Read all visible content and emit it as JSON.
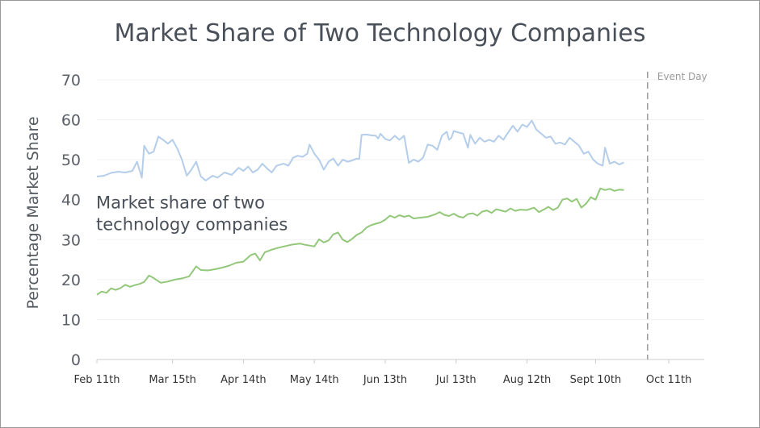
{
  "chart_data": {
    "type": "line",
    "title": "Market Share of Two Technology Companies",
    "ylabel": "Percentage Market Share",
    "xlabel": "",
    "ylim": [
      0,
      70
    ],
    "yticks": [
      0,
      10,
      20,
      30,
      40,
      50,
      60,
      70
    ],
    "xlim": [
      "2023-02-11",
      "2023-10-26"
    ],
    "xticks": [
      {
        "date": "2023-02-11",
        "label": "Feb 11th"
      },
      {
        "date": "2023-03-15",
        "label": "Mar 15th"
      },
      {
        "date": "2023-04-14",
        "label": "Apr 14th"
      },
      {
        "date": "2023-05-14",
        "label": "May 14th"
      },
      {
        "date": "2023-06-13",
        "label": "Jun 13th"
      },
      {
        "date": "2023-07-13",
        "label": "Jul 13th"
      },
      {
        "date": "2023-08-12",
        "label": "Aug 12th"
      },
      {
        "date": "2023-09-10",
        "label": "Sept 10th"
      },
      {
        "date": "2023-10-11",
        "label": "Oct 11th"
      }
    ],
    "grid": true,
    "annotation": {
      "lines": [
        "Market share of two",
        "technology companies"
      ],
      "x": "2023-02-11",
      "y": 40
    },
    "event": {
      "date": "2023-10-02",
      "label": "Event Day"
    },
    "series": [
      {
        "color": "#b4cdea",
        "points": [
          [
            "2023-02-11",
            45.8
          ],
          [
            "2023-02-14",
            46.0
          ],
          [
            "2023-02-17",
            46.7
          ],
          [
            "2023-02-20",
            47.0
          ],
          [
            "2023-02-23",
            46.8
          ],
          [
            "2023-02-26",
            47.2
          ],
          [
            "2023-02-28",
            49.5
          ],
          [
            "2023-03-02",
            45.5
          ],
          [
            "2023-03-03",
            53.5
          ],
          [
            "2023-03-05",
            51.5
          ],
          [
            "2023-03-07",
            52.0
          ],
          [
            "2023-03-09",
            55.8
          ],
          [
            "2023-03-11",
            55.0
          ],
          [
            "2023-03-13",
            54.0
          ],
          [
            "2023-03-15",
            55.0
          ],
          [
            "2023-03-17",
            52.8
          ],
          [
            "2023-03-19",
            50.0
          ],
          [
            "2023-03-21",
            46.0
          ],
          [
            "2023-03-23",
            47.5
          ],
          [
            "2023-03-25",
            49.5
          ],
          [
            "2023-03-27",
            45.8
          ],
          [
            "2023-03-29",
            44.8
          ],
          [
            "2023-04-01",
            46.0
          ],
          [
            "2023-04-03",
            45.5
          ],
          [
            "2023-04-06",
            46.8
          ],
          [
            "2023-04-09",
            46.2
          ],
          [
            "2023-04-12",
            48.0
          ],
          [
            "2023-04-14",
            47.2
          ],
          [
            "2023-04-16",
            48.3
          ],
          [
            "2023-04-18",
            46.8
          ],
          [
            "2023-04-20",
            47.5
          ],
          [
            "2023-04-22",
            49.0
          ],
          [
            "2023-04-24",
            47.8
          ],
          [
            "2023-04-26",
            46.8
          ],
          [
            "2023-04-28",
            48.5
          ],
          [
            "2023-05-01",
            49.0
          ],
          [
            "2023-05-03",
            48.5
          ],
          [
            "2023-05-05",
            50.5
          ],
          [
            "2023-05-07",
            51.0
          ],
          [
            "2023-05-09",
            50.7
          ],
          [
            "2023-05-11",
            51.5
          ],
          [
            "2023-05-12",
            53.8
          ],
          [
            "2023-05-14",
            51.5
          ],
          [
            "2023-05-16",
            50.0
          ],
          [
            "2023-05-18",
            47.5
          ],
          [
            "2023-05-20",
            49.5
          ],
          [
            "2023-05-22",
            50.3
          ],
          [
            "2023-05-24",
            48.5
          ],
          [
            "2023-05-26",
            50.0
          ],
          [
            "2023-05-28",
            49.5
          ],
          [
            "2023-05-30",
            49.8
          ],
          [
            "2023-06-01",
            50.3
          ],
          [
            "2023-06-02",
            50.2
          ],
          [
            "2023-06-03",
            56.2
          ],
          [
            "2023-06-05",
            56.3
          ],
          [
            "2023-06-07",
            56.1
          ],
          [
            "2023-06-09",
            56.0
          ],
          [
            "2023-06-10",
            55.3
          ],
          [
            "2023-06-11",
            56.5
          ],
          [
            "2023-06-13",
            55.2
          ],
          [
            "2023-06-15",
            54.8
          ],
          [
            "2023-06-17",
            56.0
          ],
          [
            "2023-06-19",
            55.0
          ],
          [
            "2023-06-21",
            56.0
          ],
          [
            "2023-06-23",
            49.2
          ],
          [
            "2023-06-25",
            50.0
          ],
          [
            "2023-06-27",
            49.5
          ],
          [
            "2023-06-29",
            50.5
          ],
          [
            "2023-07-01",
            53.8
          ],
          [
            "2023-07-03",
            53.5
          ],
          [
            "2023-07-05",
            52.5
          ],
          [
            "2023-07-07",
            56.0
          ],
          [
            "2023-07-09",
            57.0
          ],
          [
            "2023-07-10",
            55.0
          ],
          [
            "2023-07-11",
            55.5
          ],
          [
            "2023-07-12",
            57.2
          ],
          [
            "2023-07-14",
            56.8
          ],
          [
            "2023-07-16",
            56.5
          ],
          [
            "2023-07-18",
            53.0
          ],
          [
            "2023-07-19",
            56.2
          ],
          [
            "2023-07-21",
            54.0
          ],
          [
            "2023-07-23",
            55.5
          ],
          [
            "2023-07-25",
            54.5
          ],
          [
            "2023-07-27",
            55.0
          ],
          [
            "2023-07-29",
            54.5
          ],
          [
            "2023-07-31",
            56.0
          ],
          [
            "2023-08-02",
            55.0
          ],
          [
            "2023-08-04",
            56.8
          ],
          [
            "2023-08-06",
            58.5
          ],
          [
            "2023-08-08",
            57.0
          ],
          [
            "2023-08-10",
            58.8
          ],
          [
            "2023-08-12",
            58.2
          ],
          [
            "2023-08-14",
            59.8
          ],
          [
            "2023-08-16",
            57.5
          ],
          [
            "2023-08-18",
            56.5
          ],
          [
            "2023-08-20",
            55.5
          ],
          [
            "2023-08-22",
            55.8
          ],
          [
            "2023-08-24",
            54.0
          ],
          [
            "2023-08-26",
            54.3
          ],
          [
            "2023-08-28",
            53.8
          ],
          [
            "2023-08-30",
            55.5
          ],
          [
            "2023-09-01",
            54.5
          ],
          [
            "2023-09-03",
            53.5
          ],
          [
            "2023-09-05",
            51.5
          ],
          [
            "2023-09-07",
            52.0
          ],
          [
            "2023-09-09",
            50.0
          ],
          [
            "2023-09-11",
            49.0
          ],
          [
            "2023-09-13",
            48.5
          ],
          [
            "2023-09-14",
            53.0
          ],
          [
            "2023-09-16",
            49.0
          ],
          [
            "2023-09-18",
            49.5
          ],
          [
            "2023-09-20",
            48.8
          ],
          [
            "2023-09-22",
            49.3
          ]
        ]
      },
      {
        "color": "#93c77a",
        "points": [
          [
            "2023-02-11",
            16.2
          ],
          [
            "2023-02-13",
            17.0
          ],
          [
            "2023-02-15",
            16.7
          ],
          [
            "2023-02-17",
            17.8
          ],
          [
            "2023-02-19",
            17.4
          ],
          [
            "2023-02-21",
            17.9
          ],
          [
            "2023-02-23",
            18.7
          ],
          [
            "2023-02-25",
            18.2
          ],
          [
            "2023-02-27",
            18.6
          ],
          [
            "2023-03-01",
            18.9
          ],
          [
            "2023-03-03",
            19.4
          ],
          [
            "2023-03-05",
            21.0
          ],
          [
            "2023-03-07",
            20.4
          ],
          [
            "2023-03-10",
            19.2
          ],
          [
            "2023-03-13",
            19.5
          ],
          [
            "2023-03-16",
            20.0
          ],
          [
            "2023-03-19",
            20.3
          ],
          [
            "2023-03-22",
            20.8
          ],
          [
            "2023-03-25",
            23.3
          ],
          [
            "2023-03-27",
            22.4
          ],
          [
            "2023-03-30",
            22.3
          ],
          [
            "2023-04-02",
            22.6
          ],
          [
            "2023-04-05",
            23.0
          ],
          [
            "2023-04-08",
            23.5
          ],
          [
            "2023-04-11",
            24.2
          ],
          [
            "2023-04-14",
            24.5
          ],
          [
            "2023-04-17",
            26.1
          ],
          [
            "2023-04-19",
            26.5
          ],
          [
            "2023-04-21",
            24.8
          ],
          [
            "2023-04-23",
            26.8
          ],
          [
            "2023-04-26",
            27.5
          ],
          [
            "2023-04-29",
            28.0
          ],
          [
            "2023-05-02",
            28.4
          ],
          [
            "2023-05-05",
            28.8
          ],
          [
            "2023-05-08",
            29.0
          ],
          [
            "2023-05-10",
            28.7
          ],
          [
            "2023-05-12",
            28.5
          ],
          [
            "2023-05-14",
            28.3
          ],
          [
            "2023-05-16",
            30.1
          ],
          [
            "2023-05-18",
            29.3
          ],
          [
            "2023-05-20",
            29.8
          ],
          [
            "2023-05-22",
            31.3
          ],
          [
            "2023-05-24",
            31.8
          ],
          [
            "2023-05-26",
            30.0
          ],
          [
            "2023-05-28",
            29.4
          ],
          [
            "2023-05-30",
            30.2
          ],
          [
            "2023-06-01",
            31.2
          ],
          [
            "2023-06-03",
            31.8
          ],
          [
            "2023-06-05",
            33.0
          ],
          [
            "2023-06-07",
            33.6
          ],
          [
            "2023-06-09",
            34.0
          ],
          [
            "2023-06-11",
            34.3
          ],
          [
            "2023-06-13",
            35.0
          ],
          [
            "2023-06-15",
            36.0
          ],
          [
            "2023-06-17",
            35.5
          ],
          [
            "2023-06-19",
            36.1
          ],
          [
            "2023-06-21",
            35.7
          ],
          [
            "2023-06-23",
            36.0
          ],
          [
            "2023-06-25",
            35.3
          ],
          [
            "2023-06-28",
            35.5
          ],
          [
            "2023-07-01",
            35.7
          ],
          [
            "2023-07-04",
            36.3
          ],
          [
            "2023-07-06",
            36.9
          ],
          [
            "2023-07-08",
            36.2
          ],
          [
            "2023-07-10",
            35.9
          ],
          [
            "2023-07-12",
            36.5
          ],
          [
            "2023-07-14",
            35.8
          ],
          [
            "2023-07-16",
            35.5
          ],
          [
            "2023-07-18",
            36.4
          ],
          [
            "2023-07-20",
            36.6
          ],
          [
            "2023-07-22",
            36.0
          ],
          [
            "2023-07-24",
            37.0
          ],
          [
            "2023-07-26",
            37.3
          ],
          [
            "2023-07-28",
            36.7
          ],
          [
            "2023-07-30",
            37.6
          ],
          [
            "2023-08-01",
            37.3
          ],
          [
            "2023-08-03",
            37.0
          ],
          [
            "2023-08-05",
            37.8
          ],
          [
            "2023-08-07",
            37.2
          ],
          [
            "2023-08-09",
            37.5
          ],
          [
            "2023-08-12",
            37.4
          ],
          [
            "2023-08-15",
            38.0
          ],
          [
            "2023-08-17",
            36.9
          ],
          [
            "2023-08-19",
            37.5
          ],
          [
            "2023-08-21",
            38.2
          ],
          [
            "2023-08-23",
            37.4
          ],
          [
            "2023-08-25",
            38.0
          ],
          [
            "2023-08-27",
            40.0
          ],
          [
            "2023-08-29",
            40.3
          ],
          [
            "2023-08-31",
            39.5
          ],
          [
            "2023-09-02",
            40.2
          ],
          [
            "2023-09-04",
            38.0
          ],
          [
            "2023-09-06",
            39.0
          ],
          [
            "2023-09-08",
            40.6
          ],
          [
            "2023-09-10",
            40.0
          ],
          [
            "2023-09-12",
            42.8
          ],
          [
            "2023-09-14",
            42.4
          ],
          [
            "2023-09-16",
            42.7
          ],
          [
            "2023-09-18",
            42.2
          ],
          [
            "2023-09-20",
            42.5
          ],
          [
            "2023-09-22",
            42.4
          ]
        ]
      }
    ]
  }
}
